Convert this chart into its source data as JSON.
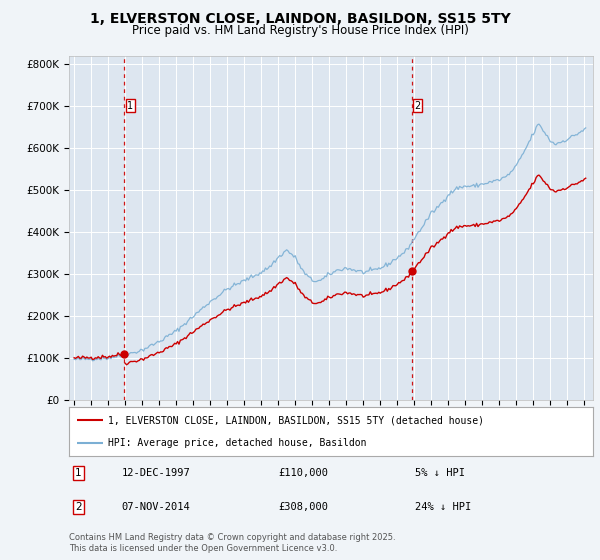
{
  "title": "1, ELVERSTON CLOSE, LAINDON, BASILDON, SS15 5TY",
  "subtitle": "Price paid vs. HM Land Registry's House Price Index (HPI)",
  "title_fontsize": 10,
  "subtitle_fontsize": 8.5,
  "bg_color": "#f0f4f8",
  "plot_bg_color": "#dde6f0",
  "grid_color": "#ffffff",
  "sale1_price": 110000,
  "sale2_price": 308000,
  "sale1_label": "12-DEC-1997",
  "sale2_label": "07-NOV-2014",
  "sale1_pct": "5% ↓ HPI",
  "sale2_pct": "24% ↓ HPI",
  "red_line_color": "#cc0000",
  "blue_line_color": "#7bafd4",
  "dashed_line_color": "#cc0000",
  "legend1": "1, ELVERSTON CLOSE, LAINDON, BASILDON, SS15 5TY (detached house)",
  "legend2": "HPI: Average price, detached house, Basildon",
  "footer": "Contains HM Land Registry data © Crown copyright and database right 2025.\nThis data is licensed under the Open Government Licence v3.0.",
  "ylabel_ticks": [
    "£0",
    "£100K",
    "£200K",
    "£300K",
    "£400K",
    "£500K",
    "£600K",
    "£700K",
    "£800K"
  ],
  "ytick_vals": [
    0,
    100000,
    200000,
    300000,
    400000,
    500000,
    600000,
    700000,
    800000
  ],
  "ylim": [
    0,
    820000
  ],
  "xlim_start": 1994.7,
  "xlim_end": 2025.5
}
